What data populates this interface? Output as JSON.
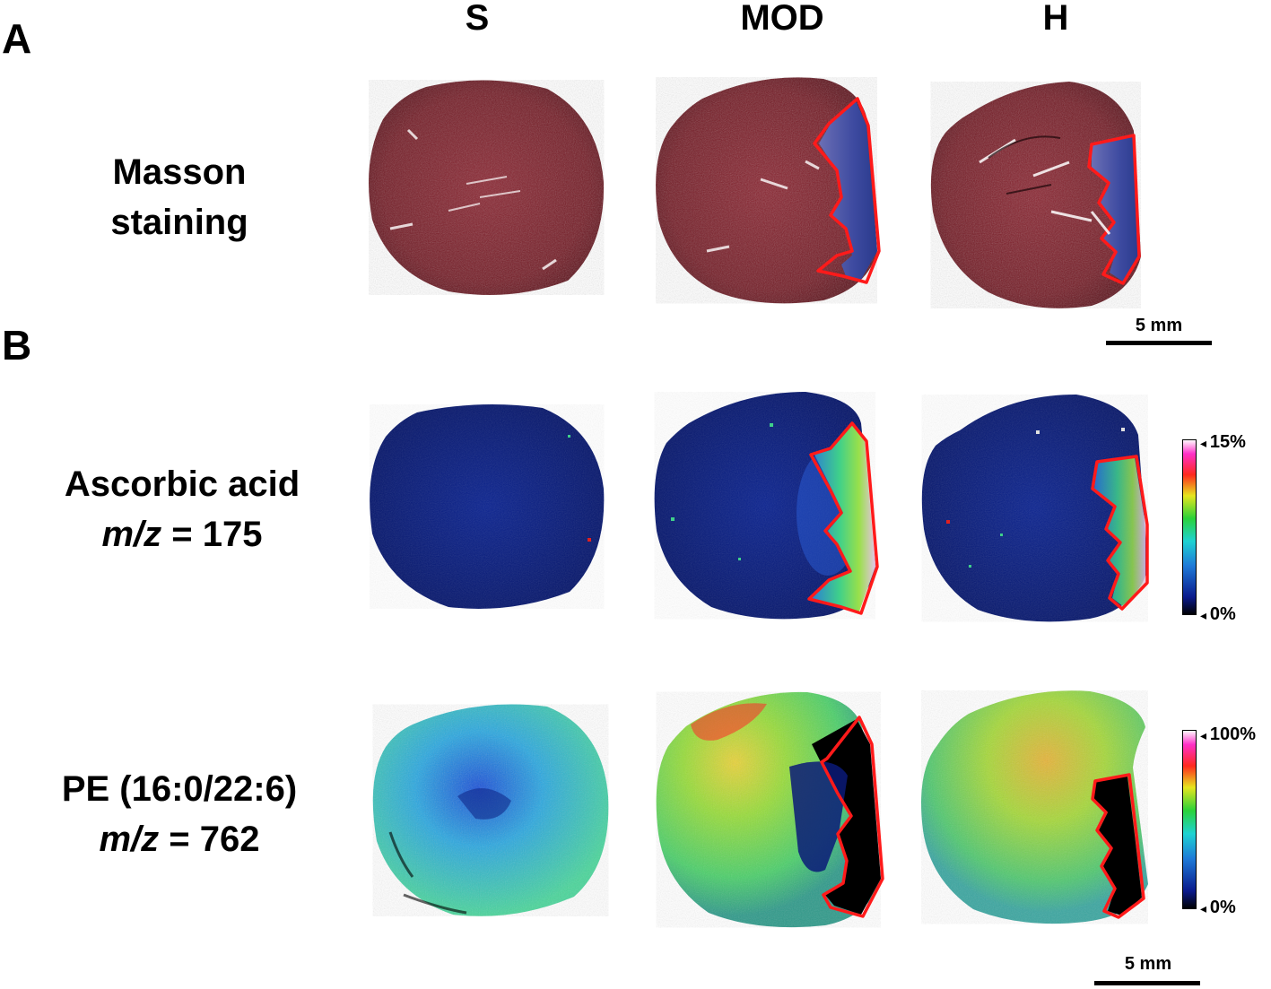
{
  "panels": {
    "a": "A",
    "b": "B"
  },
  "columns": {
    "s": "S",
    "mod": "MOD",
    "h": "H"
  },
  "rows": {
    "masson": {
      "line1": "Masson",
      "line2": "staining"
    },
    "ascorbic": {
      "name": "Ascorbic acid",
      "mz_label": "m/z",
      "mz_value": "= 175"
    },
    "pe": {
      "name": "PE (16:0/22:6)",
      "mz_label": "m/z",
      "mz_value": "= 762"
    }
  },
  "scale_bars": {
    "top": "5 mm",
    "bottom": "5 mm"
  },
  "colorbars": {
    "ascorbic": {
      "max": "15%",
      "min": "0%"
    },
    "pe": {
      "max": "100%",
      "min": "0%"
    }
  },
  "colors": {
    "tissue": "#7a1b24",
    "fibrosis": "#3c4b9a",
    "outline": "#ff1a1a",
    "low": "#0a1a78",
    "mid": "#3cd28c"
  }
}
